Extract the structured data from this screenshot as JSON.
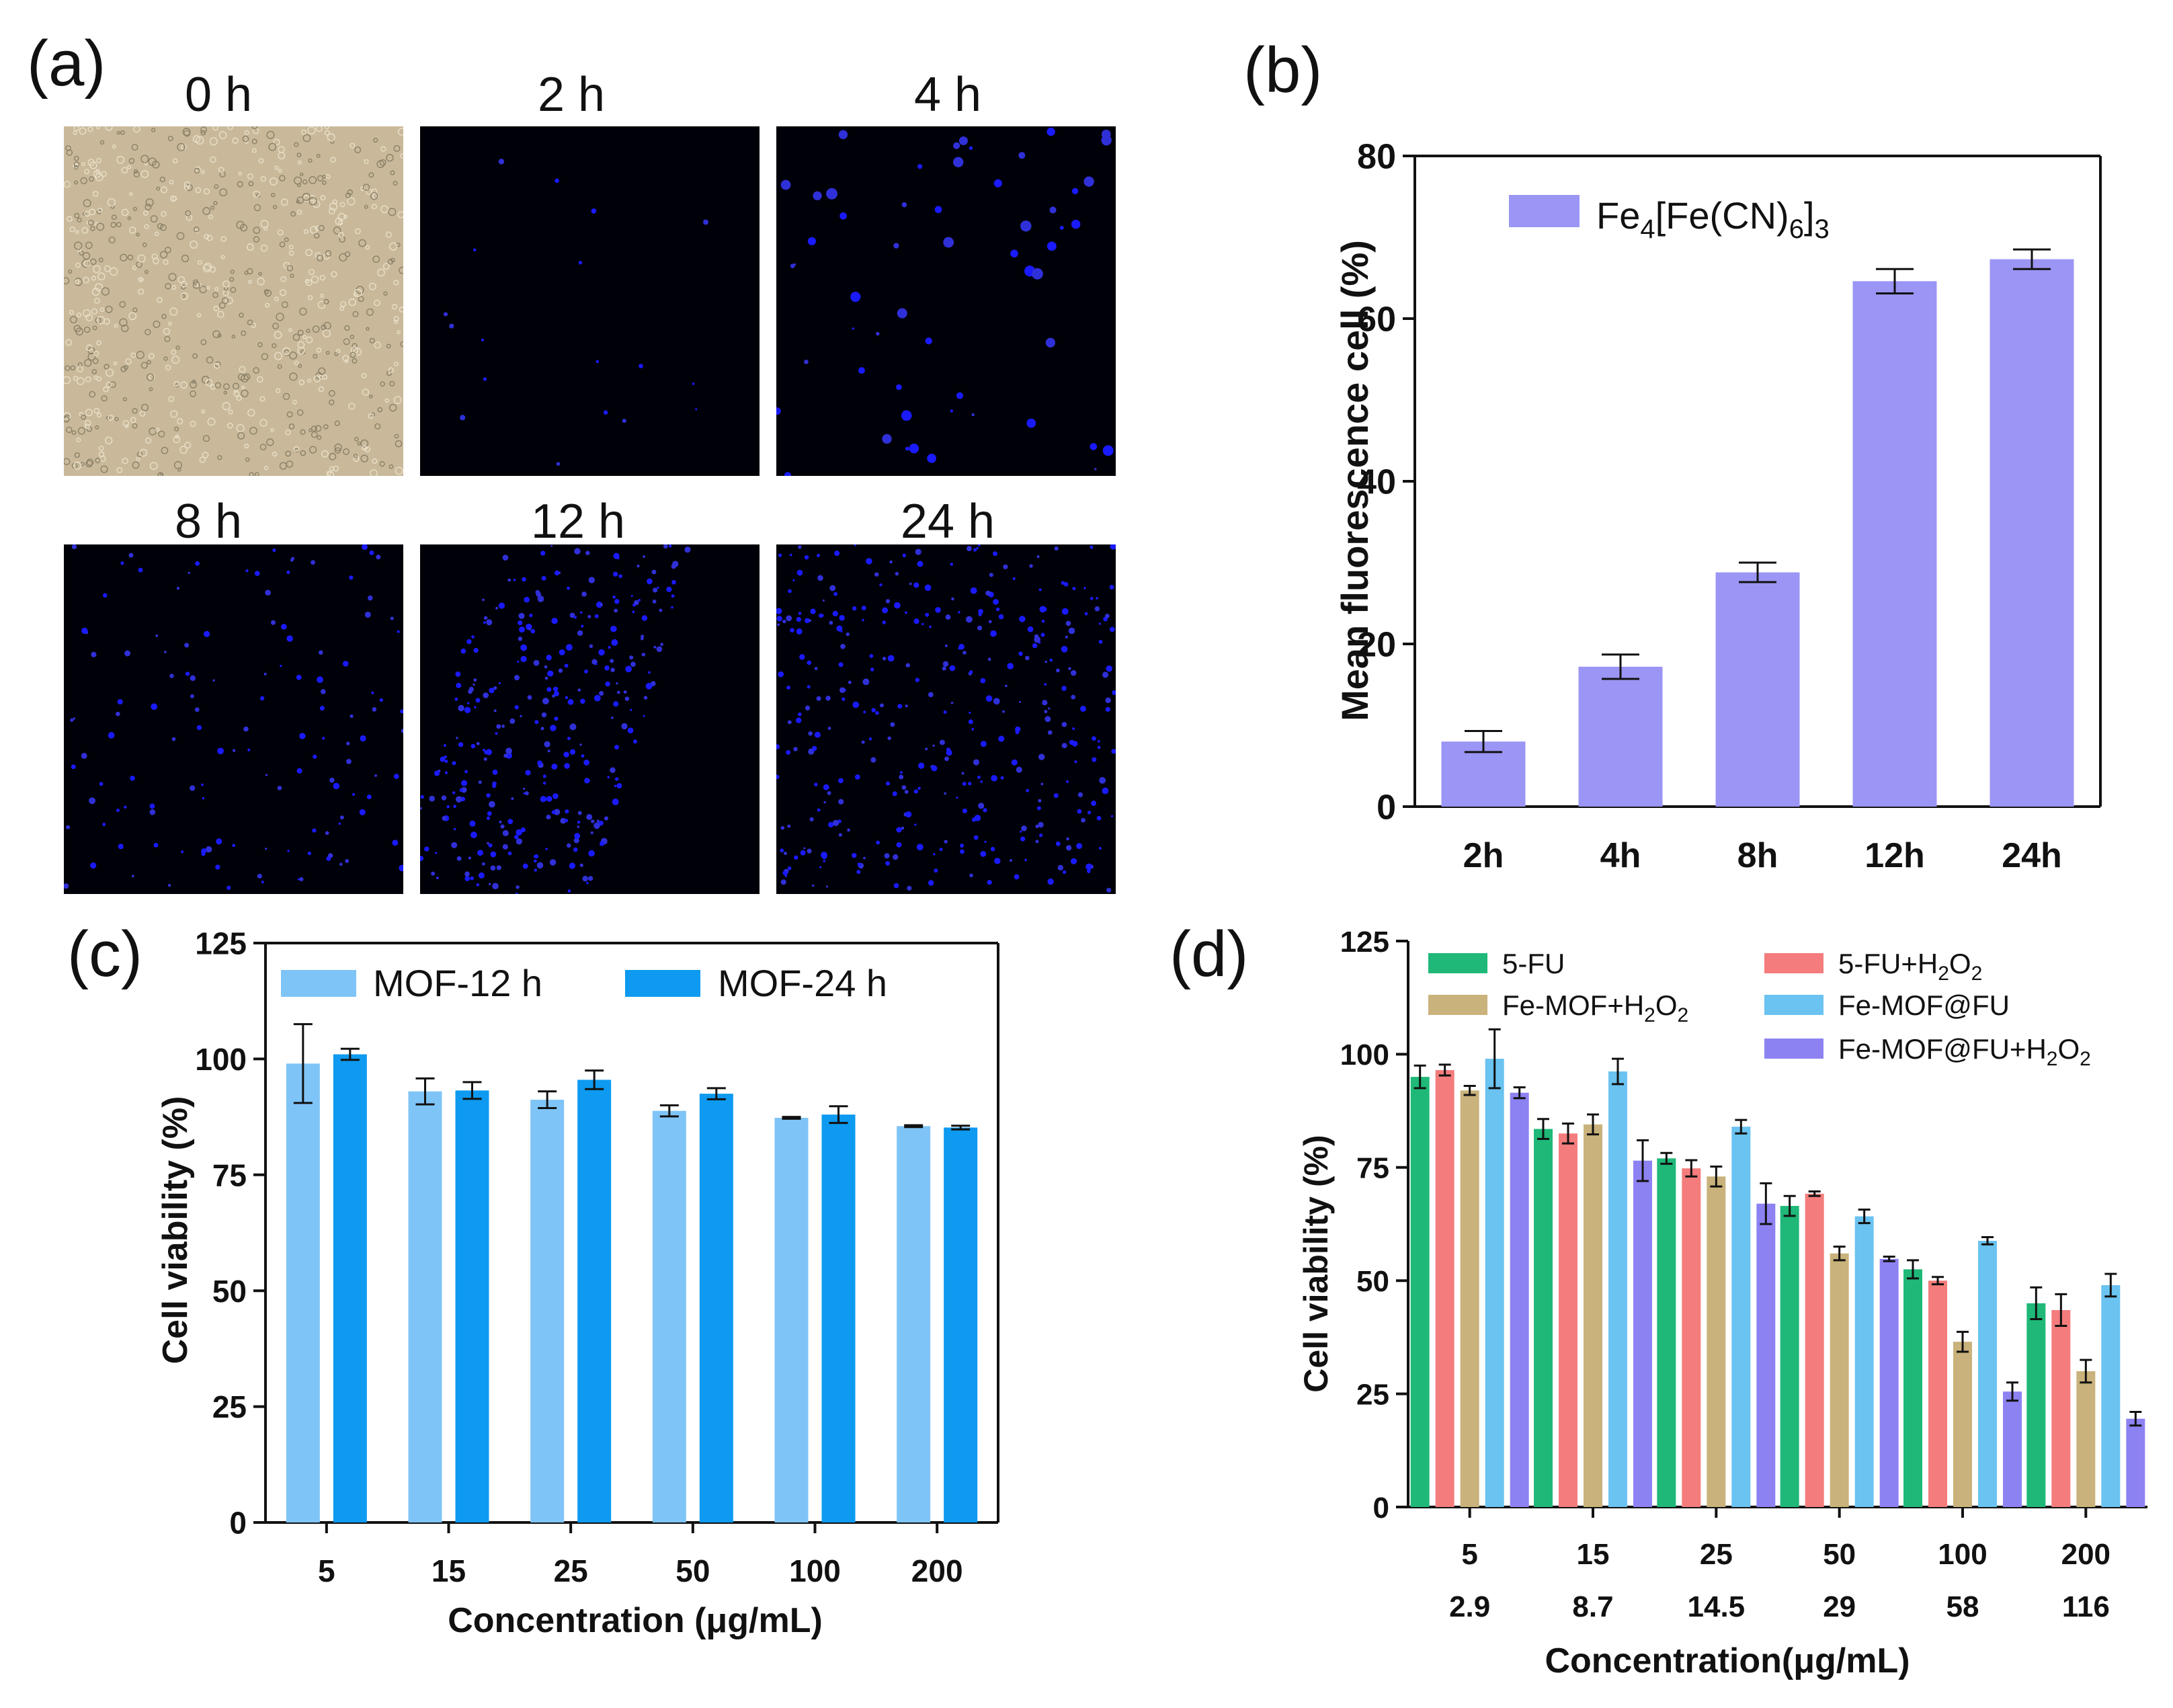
{
  "panels": {
    "a": {
      "label": "(a)",
      "images": [
        {
          "title": "0 h",
          "kind": "brightfield",
          "density": 0
        },
        {
          "title": "2 h",
          "kind": "fluorescence",
          "density": 18
        },
        {
          "title": "4 h",
          "kind": "fluorescence",
          "density": 55
        },
        {
          "title": "8 h",
          "kind": "fluorescence",
          "density": 130
        },
        {
          "title": "12 h",
          "kind": "fluorescence",
          "density": 320
        },
        {
          "title": "24 h",
          "kind": "fluorescence",
          "density": 360
        }
      ]
    },
    "b": {
      "label": "(b)"
    },
    "c": {
      "label": "(c)"
    },
    "d": {
      "label": "(d)"
    }
  },
  "chart_data": [
    {
      "panel": "b",
      "type": "bar",
      "categories": [
        "2h",
        "4h",
        "8h",
        "12h",
        "24h"
      ],
      "series": [
        {
          "name": "Fe4[Fe(CN)6]3",
          "name_parts": {
            "a": "Fe",
            "b": "4",
            "c": "[Fe(CN)",
            "d": "6",
            "e": "]",
            "f": "3"
          },
          "values": [
            8,
            17.2,
            28.8,
            64.6,
            67.3
          ],
          "errors": [
            1.3,
            1.5,
            1.2,
            1.5,
            1.2
          ],
          "color": "#9b95f5"
        }
      ],
      "xlabel": "",
      "ylabel": "Mean fluorescence cell (%)",
      "ylim": [
        0,
        80
      ],
      "yticks": [
        0,
        20,
        40,
        60,
        80
      ],
      "legend": "top-left"
    },
    {
      "panel": "c",
      "type": "bar",
      "categories": [
        "5",
        "15",
        "25",
        "50",
        "100",
        "200"
      ],
      "series": [
        {
          "name": "MOF-12 h",
          "values": [
            99,
            93,
            91.2,
            88.8,
            87.3,
            85.5
          ],
          "errors": [
            8.5,
            2.8,
            1.8,
            1.2,
            0.2,
            0.2
          ],
          "color": "#7fc4f7"
        },
        {
          "name": "MOF-24 h",
          "values": [
            101,
            93.2,
            95.5,
            92.5,
            88,
            85.2
          ],
          "errors": [
            1.2,
            1.8,
            2.0,
            1.2,
            1.8,
            0.4
          ],
          "color": "#0d9af0"
        }
      ],
      "xlabel": "Concentration (μg/mL)",
      "ylabel": "Cell viability (%)",
      "ylim": [
        0,
        125
      ],
      "yticks": [
        0,
        25,
        50,
        75,
        100,
        125
      ],
      "legend": "top"
    },
    {
      "panel": "d",
      "type": "bar",
      "categories": [
        "5",
        "15",
        "25",
        "50",
        "100",
        "200"
      ],
      "categories2": [
        "2.9",
        "8.7",
        "14.5",
        "29",
        "58",
        "116"
      ],
      "series": [
        {
          "name": "5-FU",
          "name_parts": {
            "a": "5-FU"
          },
          "values": [
            95,
            83.5,
            77,
            66.5,
            52.5,
            45
          ],
          "errors": [
            2.5,
            2.2,
            1.2,
            2.2,
            2.0,
            3.5
          ],
          "color": "#1fb878"
        },
        {
          "name": "5-FU+H2O2",
          "name_parts": {
            "a": "5-FU+H",
            "b": "2",
            "c": "O",
            "d": "2"
          },
          "values": [
            96.5,
            82.5,
            74.8,
            69.2,
            50,
            43.5
          ],
          "errors": [
            1.2,
            2.2,
            1.8,
            0.5,
            0.8,
            3.5
          ],
          "color": "#f47c7c"
        },
        {
          "name": "Fe-MOF+H2O2",
          "name_parts": {
            "a": "Fe-MOF+H",
            "b": "2",
            "c": "O",
            "d": "2"
          },
          "values": [
            92,
            84.5,
            73,
            56,
            36.5,
            30
          ],
          "errors": [
            1.0,
            2.2,
            2.2,
            1.5,
            2.2,
            2.5
          ],
          "color": "#c9b27b"
        },
        {
          "name": "Fe-MOF@FU",
          "name_parts": {
            "a": "Fe-MOF@FU"
          },
          "values": [
            99,
            96.2,
            84,
            64.2,
            58.8,
            49
          ],
          "errors": [
            6.5,
            2.8,
            1.5,
            1.5,
            0.8,
            2.5
          ],
          "color": "#6ac3f0"
        },
        {
          "name": "Fe-MOF@FU+H2O2",
          "name_parts": {
            "a": "Fe-MOF@FU+H",
            "b": "2",
            "c": "O",
            "d": "2"
          },
          "values": [
            91.5,
            76.5,
            67,
            54.8,
            25.5,
            19.5
          ],
          "errors": [
            1.2,
            4.5,
            4.5,
            0.5,
            2.0,
            1.5
          ],
          "color": "#8d82f2"
        }
      ],
      "xlabel": "Concentration(μg/mL)",
      "ylabel": "Cell viability (%)",
      "ylim": [
        0,
        125
      ],
      "yticks": [
        0,
        25,
        50,
        75,
        100,
        125
      ],
      "legend": "top"
    }
  ]
}
